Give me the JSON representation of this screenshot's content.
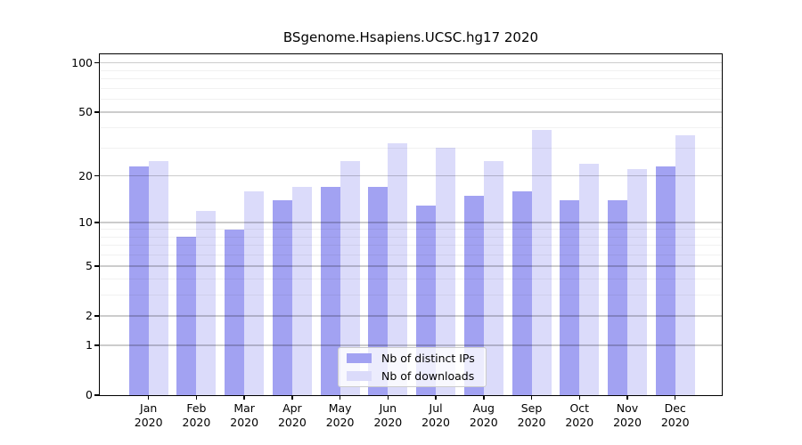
{
  "title": "BSgenome.Hsapiens.UCSC.hg17 2020",
  "chart_data": {
    "type": "bar",
    "title": "BSgenome.Hsapiens.UCSC.hg17 2020",
    "categories": [
      "Jan 2020",
      "Feb 2020",
      "Mar 2020",
      "Apr 2020",
      "May 2020",
      "Jun 2020",
      "Jul 2020",
      "Aug 2020",
      "Sep 2020",
      "Oct 2020",
      "Nov 2020",
      "Dec 2020"
    ],
    "series": [
      {
        "name": "Nb of distinct IPs",
        "key": "distinct-ips",
        "color": "#a2a2f2",
        "values": [
          23,
          8,
          9,
          14,
          17,
          17,
          13,
          15,
          16,
          14,
          14,
          23
        ]
      },
      {
        "name": "Nb of downloads",
        "key": "downloads",
        "color": "#dbdbfa",
        "values": [
          25,
          12,
          16,
          17,
          25,
          32,
          30,
          25,
          39,
          24,
          22,
          36
        ]
      }
    ],
    "xlabel": "",
    "ylabel": "",
    "yscale": "log10(1+x)",
    "ylim": [
      0,
      113
    ],
    "yticks": [
      0,
      1,
      2,
      5,
      10,
      20,
      50,
      100
    ],
    "minor_gridlines": [
      3,
      4,
      6,
      7,
      8,
      9,
      30,
      40,
      60,
      70,
      80,
      90
    ],
    "grid": true,
    "legend_position": "lower center"
  },
  "legend": {
    "items": [
      {
        "label": "Nb of distinct IPs",
        "color": "#a2a2f2"
      },
      {
        "label": "Nb of downloads",
        "color": "#dbdbfa"
      }
    ]
  },
  "colors": {
    "background": "#ffffff",
    "bar_distinct_ips": "#a2a2f2",
    "bar_downloads": "#dbdbfa",
    "axis": "#000000",
    "grid_major": "rgba(0,0,0,0.20)",
    "grid_minor": "rgba(0,0,0,0.055)",
    "legend_bg": "rgba(255,255,255,0.8)",
    "legend_border": "#cccccc"
  }
}
